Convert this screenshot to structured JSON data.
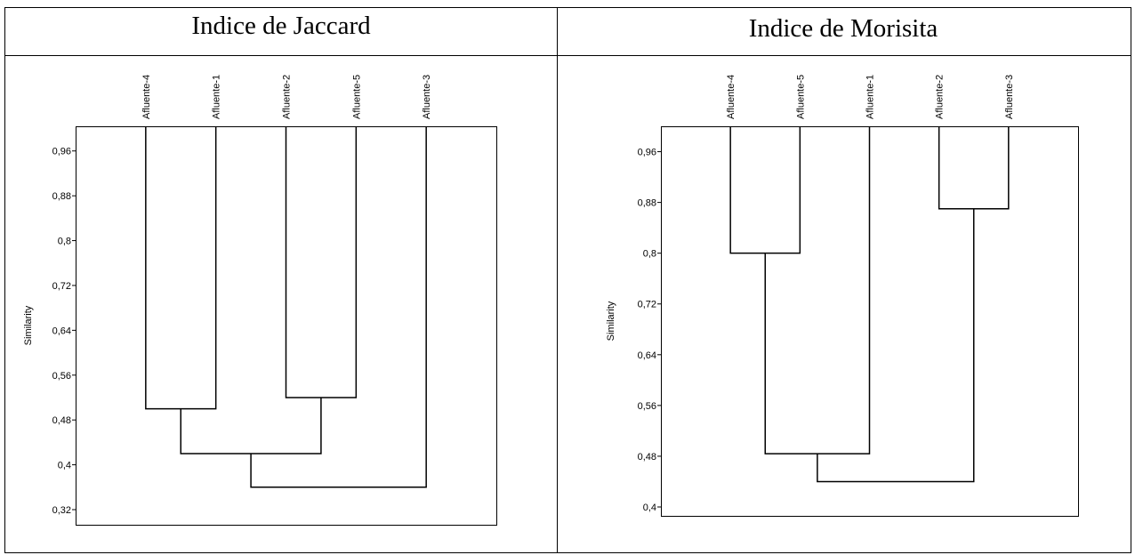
{
  "chart_data": [
    {
      "type": "dendrogram",
      "title": "Indice de Jaccard",
      "y_label": "Similarity",
      "leaves": [
        "Afluente-4",
        "Afluente-1",
        "Afluente-2",
        "Afluente-5",
        "Afluente-3"
      ],
      "links": [
        {
          "children": [
            0,
            1
          ],
          "value": 0.5
        },
        {
          "children": [
            2,
            3
          ],
          "value": 0.52
        },
        {
          "children": [
            5,
            6
          ],
          "value": 0.42
        },
        {
          "children": [
            7,
            4
          ],
          "value": 0.36
        }
      ],
      "ylim": [
        0.293,
        1.004
      ],
      "yticks": [
        {
          "value": 0.32,
          "label": "0,32"
        },
        {
          "value": 0.4,
          "label": "0,4"
        },
        {
          "value": 0.48,
          "label": "0,48"
        },
        {
          "value": 0.56,
          "label": "0,56"
        },
        {
          "value": 0.64,
          "label": "0,64"
        },
        {
          "value": 0.72,
          "label": "0,72"
        },
        {
          "value": 0.8,
          "label": "0,8"
        },
        {
          "value": 0.88,
          "label": "0,88"
        },
        {
          "value": 0.96,
          "label": "0,96"
        }
      ],
      "color": "#000000"
    },
    {
      "type": "dendrogram",
      "title": "Indice de Morisita",
      "y_label": "Similarity",
      "leaves": [
        "Afluente-4",
        "Afluente-5",
        "Afluente-1",
        "Afluente-2",
        "Afluente-3"
      ],
      "links": [
        {
          "children": [
            0,
            1
          ],
          "value": 0.8
        },
        {
          "children": [
            3,
            4
          ],
          "value": 0.87
        },
        {
          "children": [
            5,
            2
          ],
          "value": 0.484
        },
        {
          "children": [
            7,
            6
          ],
          "value": 0.44
        }
      ],
      "ylim": [
        0.386,
        1.0
      ],
      "yticks": [
        {
          "value": 0.4,
          "label": "0,4"
        },
        {
          "value": 0.48,
          "label": "0,48"
        },
        {
          "value": 0.56,
          "label": "0,56"
        },
        {
          "value": 0.64,
          "label": "0,64"
        },
        {
          "value": 0.72,
          "label": "0,72"
        },
        {
          "value": 0.8,
          "label": "0,8"
        },
        {
          "value": 0.88,
          "label": "0,88"
        },
        {
          "value": 0.96,
          "label": "0,96"
        }
      ],
      "color": "#000000"
    }
  ]
}
